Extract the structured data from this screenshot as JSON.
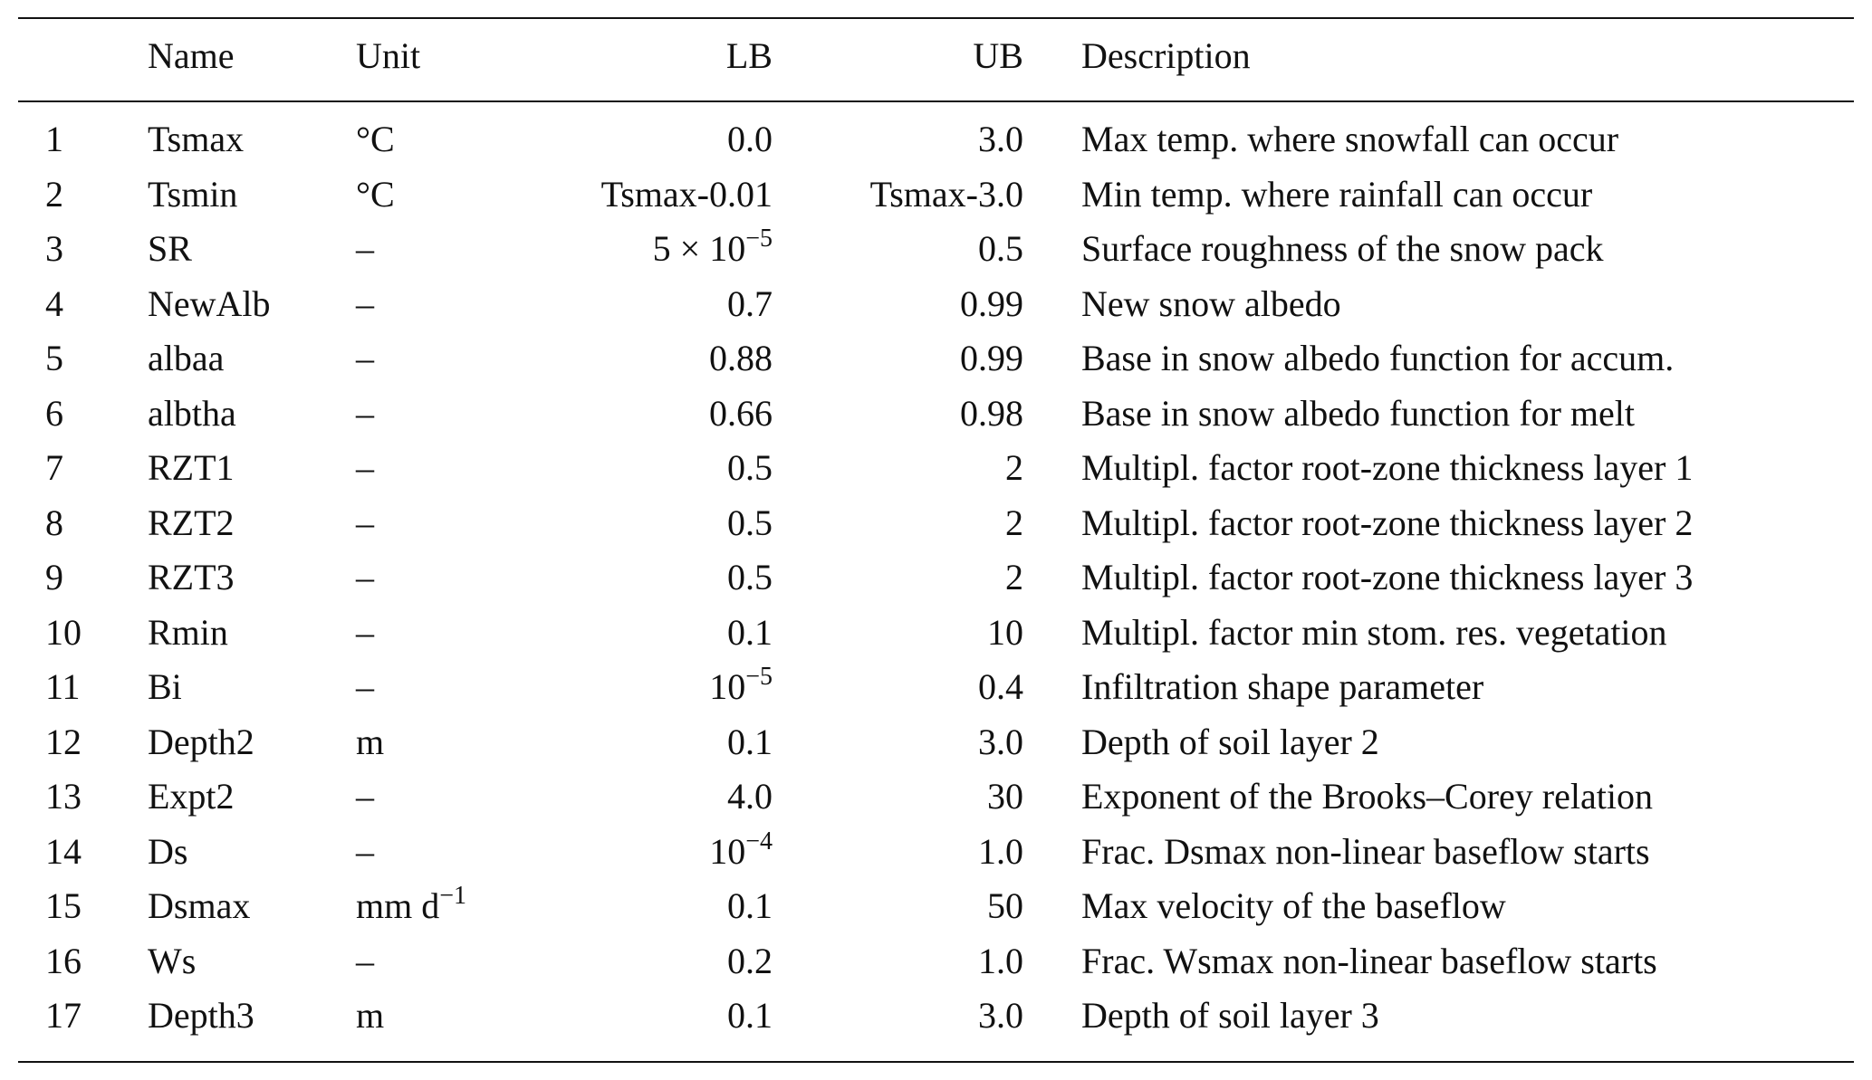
{
  "table": {
    "header": [
      "Name",
      "Unit",
      "LB",
      "UB",
      "Description"
    ],
    "rows": [
      [
        "1",
        "Tsmax",
        "°C",
        "0.0",
        "3.0",
        "Max temp. where snowfall can occur"
      ],
      [
        "2",
        "Tsmin",
        "°C",
        "Tsmax-0.01",
        "Tsmax-3.0",
        "Min temp. where rainfall can occur"
      ],
      [
        "3",
        "SR",
        "–",
        {
          "text": "5 × 10",
          "sup": "−5"
        },
        "0.5",
        "Surface roughness of the snow pack"
      ],
      [
        "4",
        "NewAlb",
        "–",
        "0.7",
        "0.99",
        "New snow albedo"
      ],
      [
        "5",
        "albaa",
        "–",
        "0.88",
        "0.99",
        "Base in snow albedo function for accum."
      ],
      [
        "6",
        "albtha",
        "–",
        "0.66",
        "0.98",
        "Base in snow albedo function for melt"
      ],
      [
        "7",
        "RZT1",
        "–",
        "0.5",
        "2",
        "Multipl. factor root-zone thickness layer 1"
      ],
      [
        "8",
        "RZT2",
        "–",
        "0.5",
        "2",
        "Multipl. factor root-zone thickness layer 2"
      ],
      [
        "9",
        "RZT3",
        "–",
        "0.5",
        "2",
        "Multipl. factor root-zone thickness layer 3"
      ],
      [
        "10",
        "Rmin",
        "–",
        "0.1",
        "10",
        "Multipl. factor min stom. res. vegetation"
      ],
      [
        "11",
        "Bi",
        "–",
        {
          "text": "10",
          "sup": "−5"
        },
        "0.4",
        "Infiltration shape parameter"
      ],
      [
        "12",
        "Depth2",
        "m",
        "0.1",
        "3.0",
        "Depth of soil layer 2"
      ],
      [
        "13",
        "Expt2",
        "–",
        "4.0",
        "30",
        "Exponent of the Brooks–Corey relation"
      ],
      [
        "14",
        "Ds",
        "–",
        {
          "text": "10",
          "sup": "−4"
        },
        "1.0",
        "Frac. Dsmax non-linear baseflow starts"
      ],
      [
        "15",
        "Dsmax",
        {
          "text": "mm d",
          "sup": "−1"
        },
        "0.1",
        "50",
        "Max velocity of the baseflow"
      ],
      [
        "16",
        "Ws",
        "–",
        "0.2",
        "1.0",
        "Frac. Wsmax non-linear baseflow starts"
      ],
      [
        "17",
        "Depth3",
        "m",
        "0.1",
        "3.0",
        "Depth of soil layer 3"
      ]
    ]
  }
}
